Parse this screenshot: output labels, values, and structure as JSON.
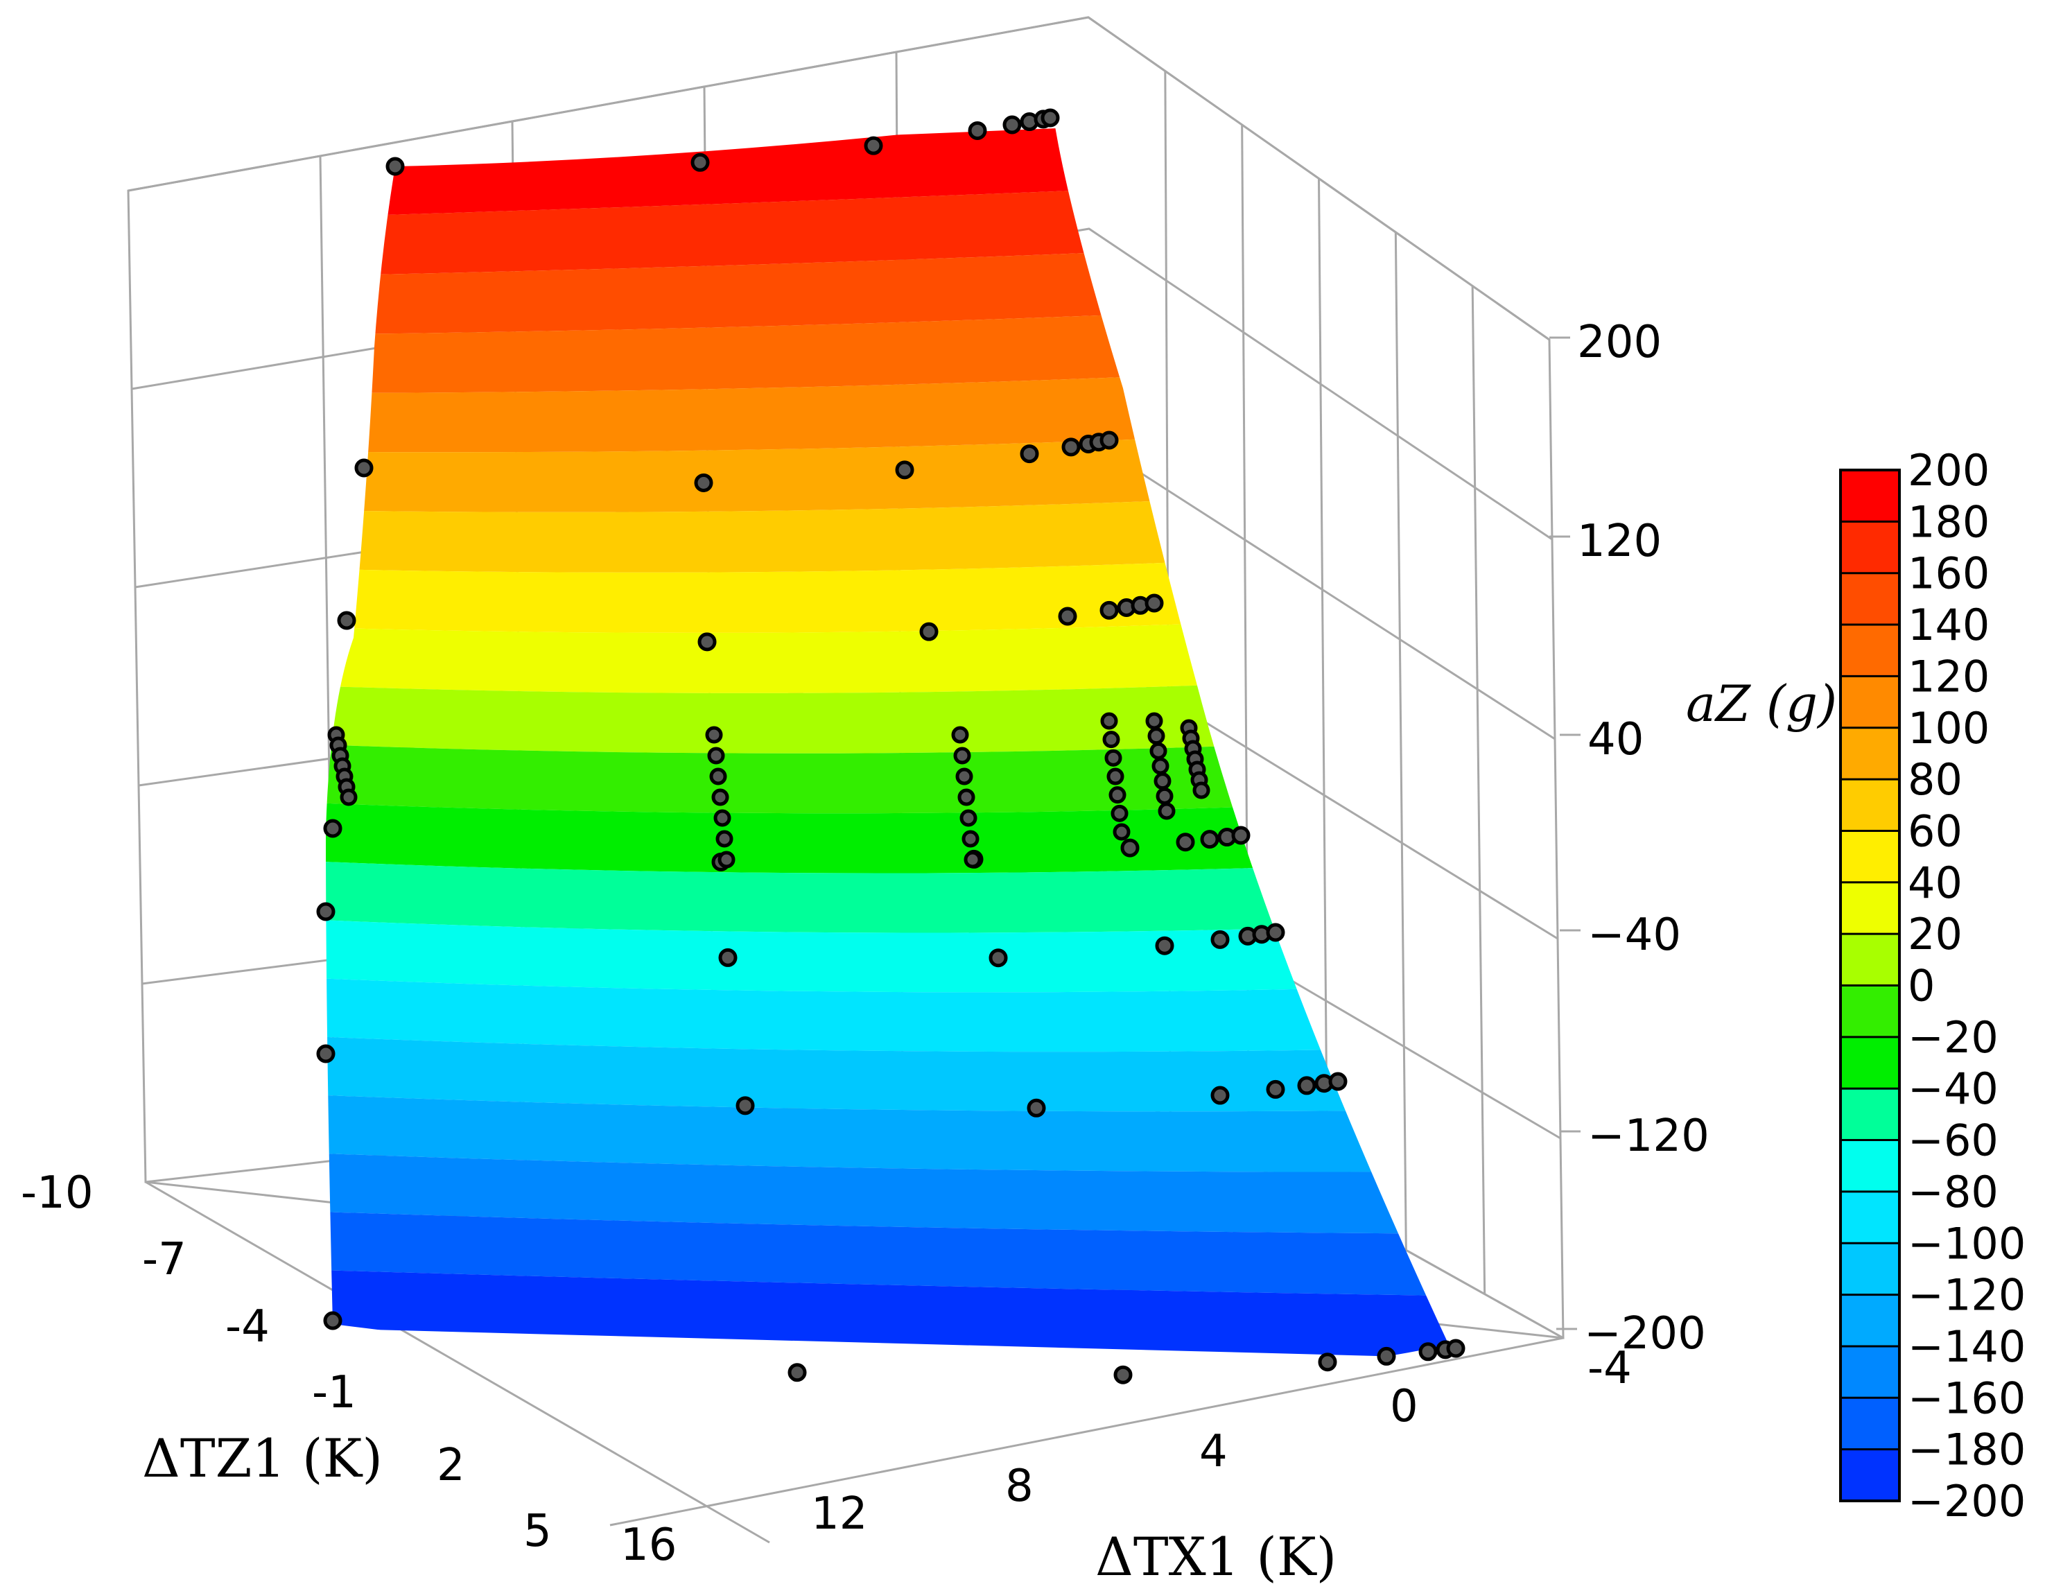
{
  "chart_data": {
    "type": "surface",
    "title": "",
    "xlabel": "ΔTX1 (K)",
    "ylabel": "ΔTZ1 (K)",
    "zlabel": "aZ (g)",
    "x_ticks": [
      "-4",
      "0",
      "4",
      "8",
      "12",
      "16"
    ],
    "y_ticks": [
      "-10",
      "-7",
      "-4",
      "-1",
      "2",
      "5"
    ],
    "z_ticks": [
      "200",
      "120",
      "40",
      "−40",
      "−120",
      "−200"
    ],
    "xlim": [
      -4,
      16
    ],
    "ylim": [
      -10,
      5
    ],
    "zlim": [
      -200,
      200
    ],
    "grid": true,
    "colorbar": {
      "label": "aZ (g)",
      "ticks": [
        "200",
        "180",
        "160",
        "140",
        "120",
        "100",
        "80",
        "60",
        "40",
        "20",
        "0",
        "−20",
        "−40",
        "−60",
        "−80",
        "−100",
        "−120",
        "−140",
        "−160",
        "−180",
        "−200"
      ],
      "colors": [
        "#ff0000",
        "#ff2a00",
        "#ff4d00",
        "#ff6a00",
        "#ff8a00",
        "#ffaa00",
        "#ffcc00",
        "#ffee00",
        "#eeff00",
        "#a8ff00",
        "#33ee00",
        "#00ee00",
        "#00ff99",
        "#00ffee",
        "#00e5ff",
        "#00c8ff",
        "#00aaff",
        "#0088ff",
        "#0060ff",
        "#0033ff",
        "#0a00d0"
      ]
    },
    "series": [
      {
        "values_z_levels": [
          200,
          120,
          60,
          20,
          0,
          -40,
          -120,
          -200
        ]
      }
    ]
  }
}
